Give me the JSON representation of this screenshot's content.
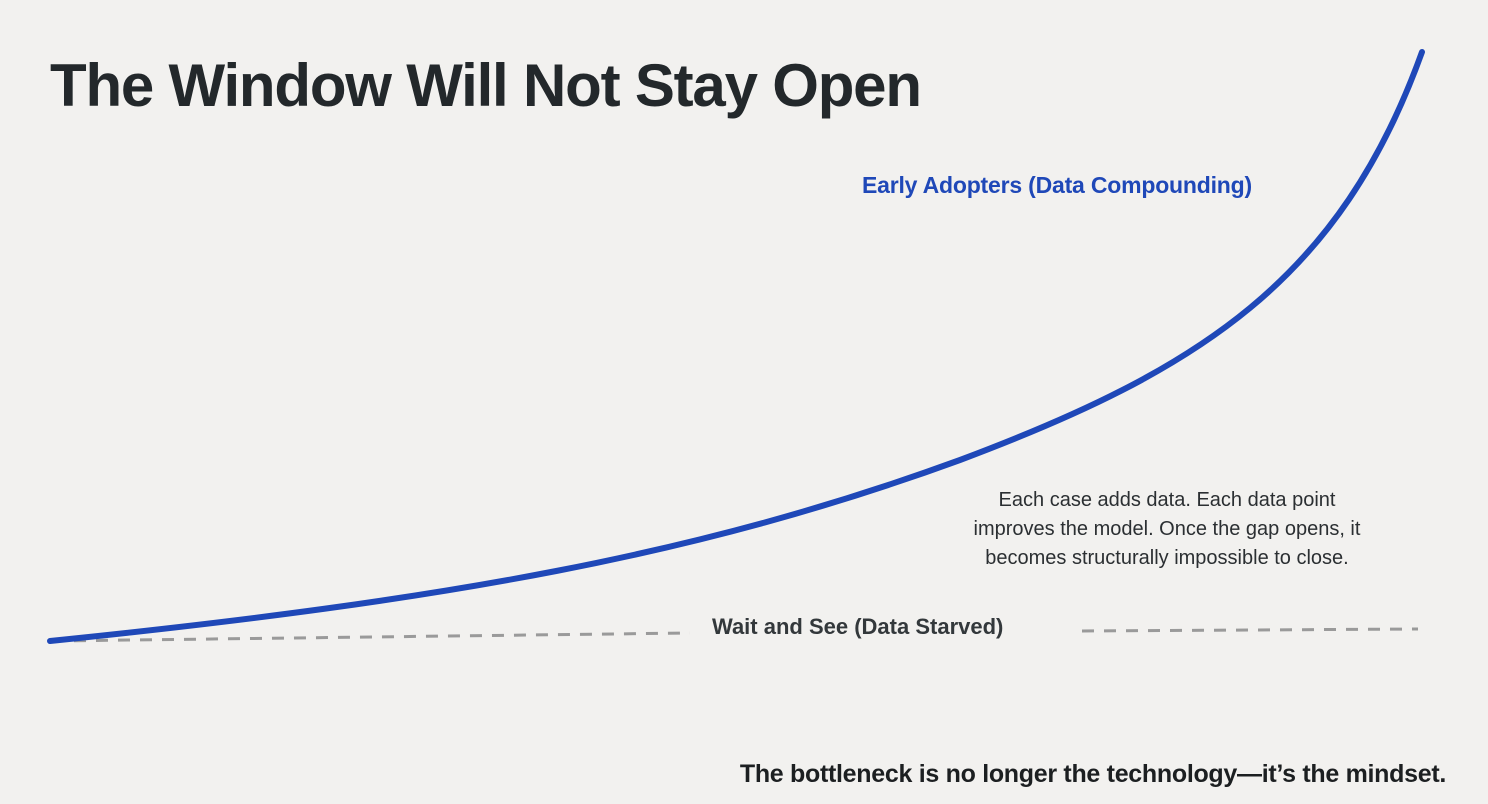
{
  "slide": {
    "title": "The Window Will Not Stay Open",
    "footer": "The bottleneck is no longer the technology—it’s the mindset."
  },
  "diagram": {
    "curve_label": "Early Adopters (Data Compounding)",
    "baseline_label": "Wait and See (Data Starved)",
    "annotation_lines": [
      "Each case adds data. Each data point",
      "improves the model. Once the gap opens, it",
      "becomes structurally impossible to close."
    ]
  },
  "colors": {
    "background": "#f2f1ef",
    "curve": "#1f48b8",
    "baseline": "#9a9a9a",
    "title": "#23282b"
  }
}
